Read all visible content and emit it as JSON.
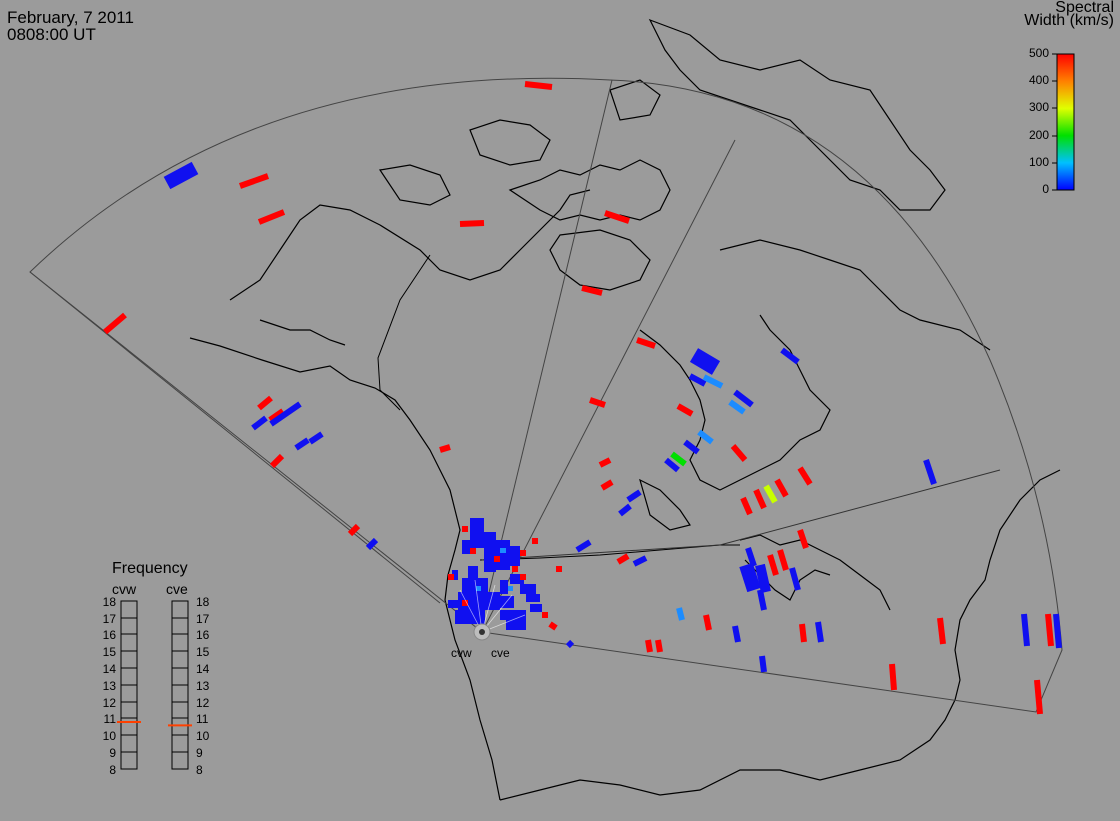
{
  "header": {
    "date": "February, 7 2011",
    "time": "0808:00 UT"
  },
  "colorbar": {
    "title_line1": "Spectral",
    "title_line2": "Width (km/s)",
    "ticks": [
      "500",
      "400",
      "300",
      "200",
      "100",
      "0"
    ],
    "range": [
      0,
      500
    ]
  },
  "frequency": {
    "title": "Frequency",
    "left_label": "cvw",
    "right_label": "cve",
    "ticks": [
      "18",
      "17",
      "16",
      "15",
      "14",
      "13",
      "12",
      "11",
      "10",
      "9",
      "8"
    ],
    "cvw_value": 10.8,
    "cve_value": 10.6
  },
  "radars": {
    "west": "cvw",
    "east": "cve"
  },
  "colors": {
    "background": "#9b9b9b",
    "low": "#1010f0",
    "high": "#ff0000",
    "marker": "#ff4000"
  }
}
